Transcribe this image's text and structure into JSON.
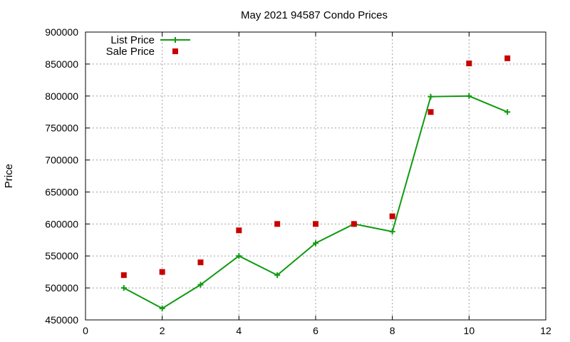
{
  "chart_data": {
    "type": "line",
    "title": "May 2021 94587 Condo Prices",
    "xlabel": "",
    "ylabel": "Price",
    "xlim": [
      0,
      12
    ],
    "ylim": [
      450000,
      900000
    ],
    "x_ticks": [
      "0",
      "2",
      "4",
      "6",
      "8",
      "10",
      "12"
    ],
    "y_ticks": [
      "450000",
      "500000",
      "550000",
      "600000",
      "650000",
      "700000",
      "750000",
      "800000",
      "850000",
      "900000"
    ],
    "grid": true,
    "legend_position": "top-left",
    "series": [
      {
        "name": "List Price",
        "style": "line-with-plus-markers",
        "color": "#109a10",
        "x": [
          1,
          2,
          3,
          4,
          5,
          6,
          7,
          8,
          9,
          10,
          11
        ],
        "y": [
          500000,
          468000,
          505000,
          550000,
          520000,
          570000,
          600000,
          588000,
          799000,
          800000,
          775000
        ]
      },
      {
        "name": "Sale Price",
        "style": "square-markers",
        "color": "#c80000",
        "x": [
          1,
          2,
          3,
          4,
          5,
          6,
          7,
          8,
          9,
          10,
          11
        ],
        "y": [
          520000,
          525000,
          540000,
          590000,
          600000,
          600000,
          600000,
          612000,
          775000,
          851000,
          859000
        ]
      }
    ]
  }
}
